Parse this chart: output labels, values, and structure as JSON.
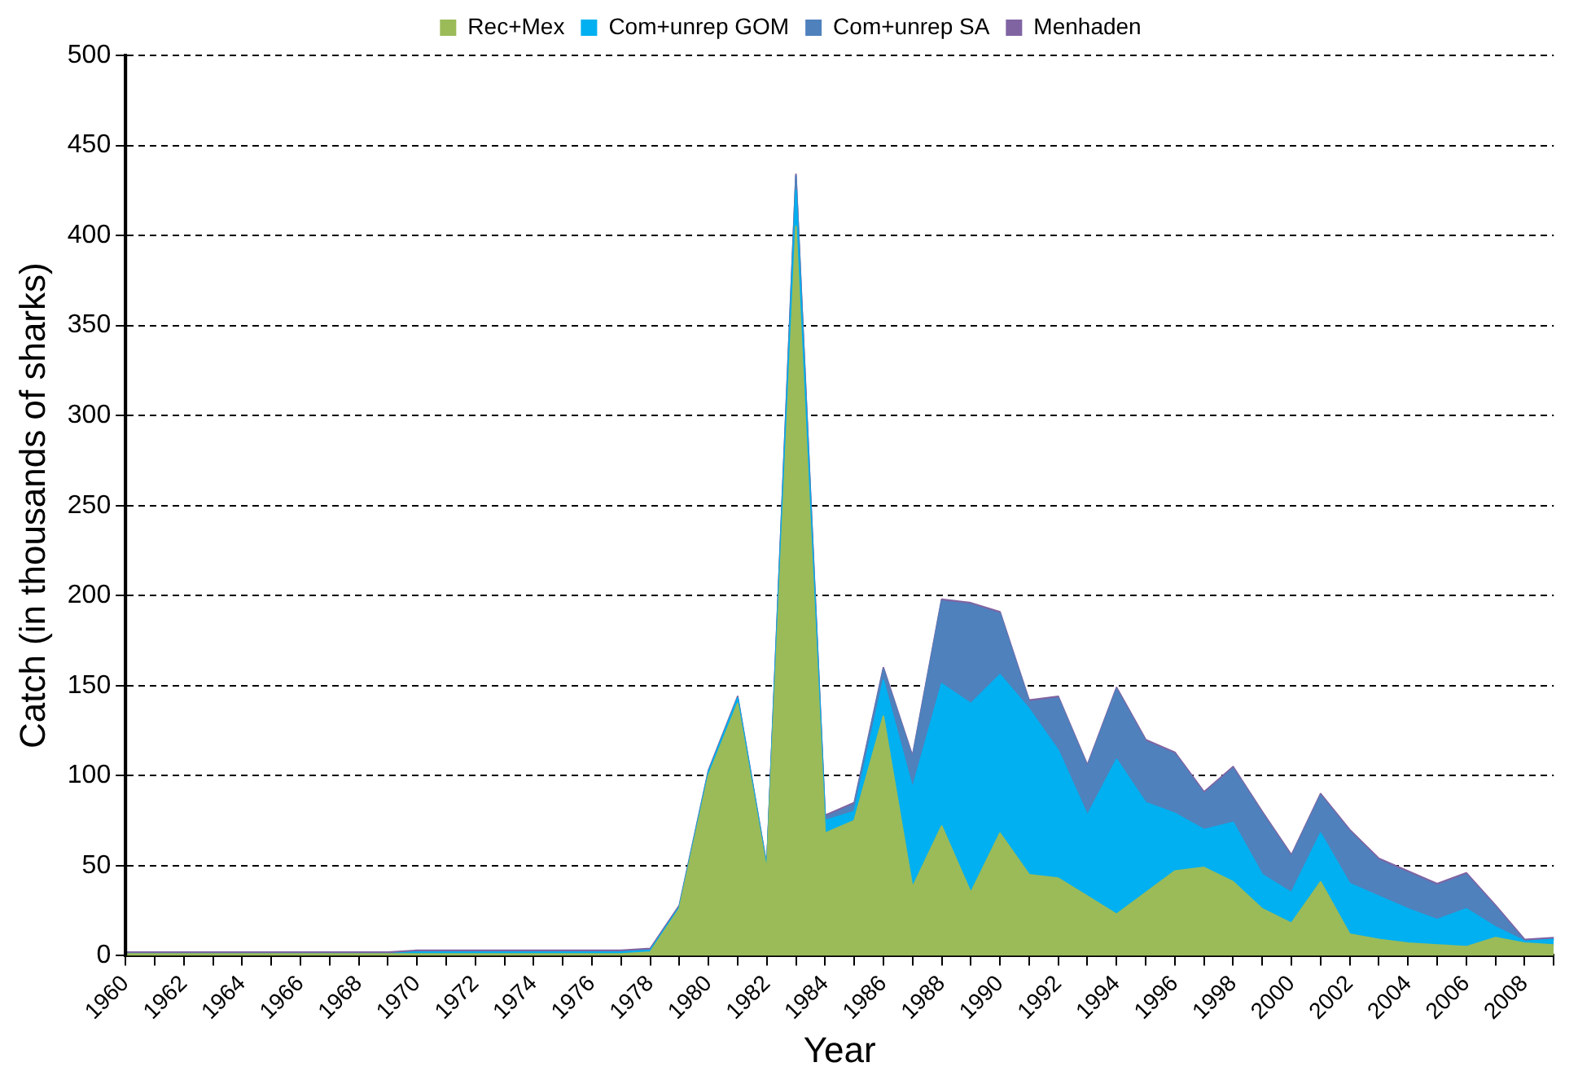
{
  "chart_data": {
    "type": "area",
    "stacked": true,
    "xlabel": "Year",
    "ylabel": "Catch (in thousands of sharks)",
    "categories": [
      "1960",
      null,
      "1962",
      null,
      "1964",
      null,
      "1966",
      null,
      "1968",
      null,
      "1970",
      null,
      "1972",
      null,
      "1974",
      null,
      "1976",
      null,
      "1978",
      null,
      "1980",
      null,
      "1982",
      null,
      "1984",
      null,
      "1986",
      null,
      "1988",
      null,
      "1990",
      null,
      "1992",
      null,
      "1994",
      null,
      "1996",
      null,
      "1998",
      null,
      "2000",
      null,
      "2002",
      null,
      "2004",
      null,
      "2006",
      null,
      "2008",
      null
    ],
    "series": [
      {
        "name": "Rec+Mex",
        "color": "#9bbb59",
        "values": [
          1,
          1,
          1,
          1,
          1,
          1,
          1,
          1,
          1,
          1,
          1,
          1,
          1,
          1,
          1,
          1,
          1,
          1,
          2,
          26,
          100,
          140,
          47,
          405,
          68,
          75,
          133,
          38,
          72,
          35,
          68,
          45,
          43,
          33,
          23,
          35,
          47,
          49,
          41,
          26,
          18,
          41,
          12,
          9,
          7,
          6,
          5,
          10,
          7,
          6
        ]
      },
      {
        "name": "Com+unrep GOM",
        "color": "#00b0f0",
        "values": [
          0,
          0,
          0,
          0,
          0,
          0,
          0,
          0,
          0,
          0,
          1,
          1,
          1,
          1,
          1,
          1,
          1,
          1,
          1,
          1,
          2,
          3,
          2,
          20,
          7,
          5,
          20,
          55,
          79,
          105,
          88,
          92,
          71,
          45,
          86,
          50,
          32,
          21,
          33,
          19,
          17,
          27,
          28,
          24,
          19,
          14,
          21,
          6,
          1,
          3
        ]
      },
      {
        "name": "Com+unrep SA",
        "color": "#4f81bd",
        "values": [
          0,
          0,
          0,
          0,
          0,
          0,
          0,
          0,
          0,
          0,
          0,
          0,
          0,
          0,
          0,
          0,
          0,
          0,
          0,
          0,
          0,
          0,
          0,
          8,
          2,
          4,
          6,
          17,
          46,
          55,
          34,
          4,
          29,
          27,
          39,
          34,
          33,
          20,
          30,
          34,
          20,
          21,
          29,
          20,
          20,
          19,
          19,
          11,
          0,
          0
        ]
      },
      {
        "name": "Menhaden",
        "color": "#8064a2",
        "values": [
          1,
          1,
          1,
          1,
          1,
          1,
          1,
          1,
          1,
          1,
          1,
          1,
          1,
          1,
          1,
          1,
          1,
          1,
          1,
          1,
          1,
          1,
          1,
          1,
          1,
          1,
          1,
          1,
          1,
          1,
          1,
          1,
          1,
          1,
          1,
          1,
          1,
          1,
          1,
          1,
          1,
          1,
          1,
          1,
          1,
          1,
          1,
          1,
          1,
          1
        ]
      }
    ],
    "ylim": [
      0,
      500
    ],
    "yticks": [
      0,
      50,
      100,
      150,
      200,
      250,
      300,
      350,
      400,
      450,
      500
    ],
    "grid": "y",
    "legend": "top"
  }
}
